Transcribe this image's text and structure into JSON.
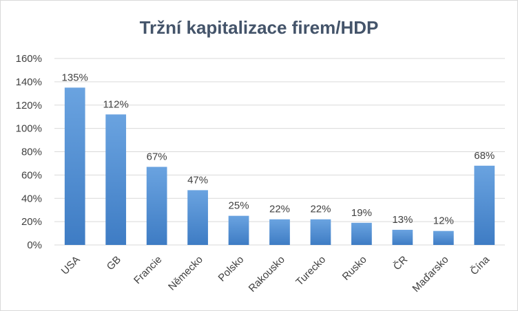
{
  "chart_data": {
    "type": "bar",
    "title": "Tržní kapitalizace firem/HDP",
    "xlabel": "",
    "ylabel": "",
    "categories": [
      "USA",
      "GB",
      "Francie",
      "Německo",
      "Polsko",
      "Rakousko",
      "Turecko",
      "Rusko",
      "ČR",
      "Maďarsko",
      "Čína"
    ],
    "values": [
      135,
      112,
      67,
      47,
      25,
      22,
      22,
      19,
      13,
      12,
      68
    ],
    "value_labels": [
      "135%",
      "112%",
      "67%",
      "47%",
      "25%",
      "22%",
      "22%",
      "19%",
      "13%",
      "12%",
      "68%"
    ],
    "ylim": [
      0,
      160
    ],
    "yticks": [
      "0%",
      "20%",
      "40%",
      "60%",
      "80%",
      "100%",
      "120%",
      "140%",
      "160%"
    ],
    "grid": true,
    "legend": "none",
    "colors": {
      "bar_top": "#6aa3e0",
      "bar_bottom": "#3e7cc4",
      "gridline": "#d9d9d9",
      "title": "#44546a"
    }
  }
}
